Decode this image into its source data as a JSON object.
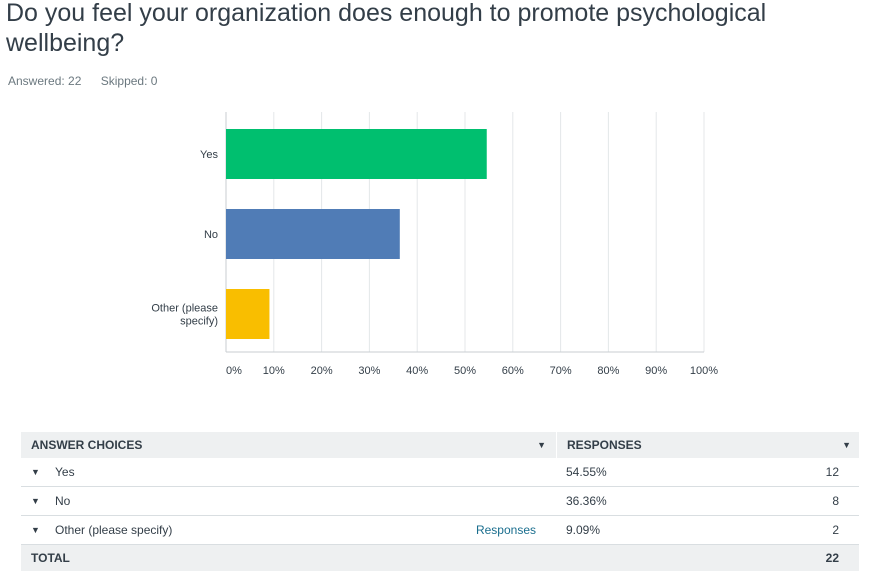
{
  "question": {
    "title": "Do you feel your organization does enough to promote psychological wellbeing?",
    "answered_label": "Answered: 22",
    "skipped_label": "Skipped: 0"
  },
  "chart_data": {
    "type": "bar",
    "orientation": "horizontal",
    "categories": [
      "Yes",
      "No",
      "Other (please specify)"
    ],
    "category_labels": [
      [
        "Yes"
      ],
      [
        "No"
      ],
      [
        "Other (please",
        "specify)"
      ]
    ],
    "values": [
      54.55,
      36.36,
      9.09
    ],
    "colors": [
      "#00bf6f",
      "#507cb6",
      "#f9be00"
    ],
    "xlim": [
      0,
      100
    ],
    "x_ticks": [
      "0%",
      "10%",
      "20%",
      "30%",
      "40%",
      "50%",
      "60%",
      "70%",
      "80%",
      "90%",
      "100%"
    ],
    "grid": true
  },
  "table": {
    "header_choices": "ANSWER CHOICES",
    "header_responses": "RESPONSES",
    "rows": [
      {
        "choice": "Yes",
        "percent": "54.55%",
        "count": "12",
        "link": ""
      },
      {
        "choice": "No",
        "percent": "36.36%",
        "count": "8",
        "link": ""
      },
      {
        "choice": "Other (please specify)",
        "percent": "9.09%",
        "count": "2",
        "link": "Responses"
      }
    ],
    "total_label": "TOTAL",
    "total_count": "22"
  }
}
